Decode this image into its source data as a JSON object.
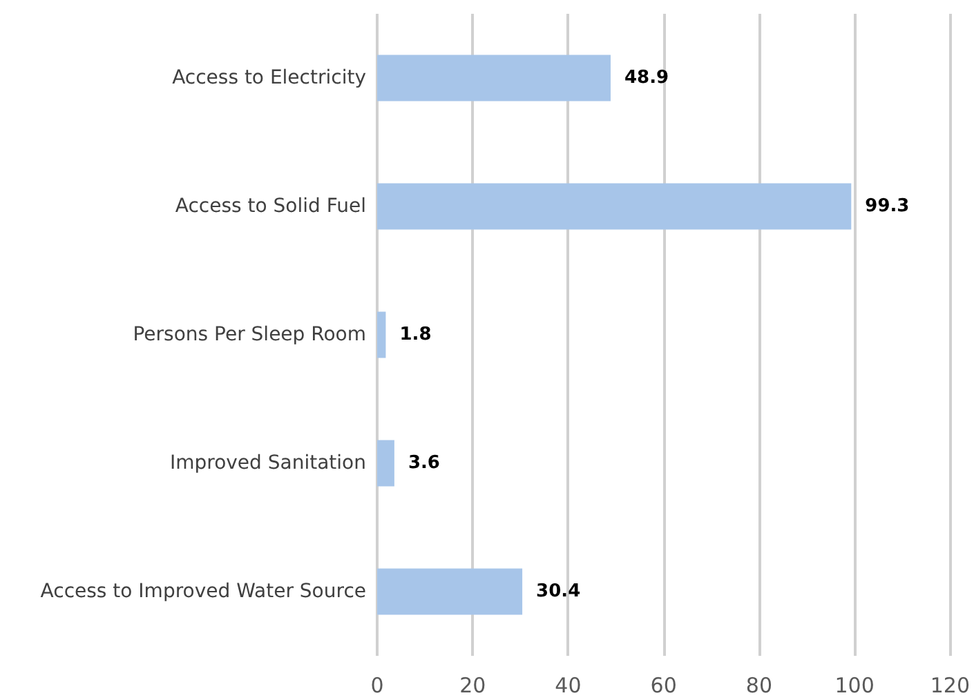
{
  "chart_data": {
    "type": "bar",
    "orientation": "horizontal",
    "categories": [
      "Access to Electricity",
      "Access to Solid Fuel",
      "Persons Per Sleep Room",
      "Improved Sanitation",
      "Access to Improved Water Source"
    ],
    "values": [
      48.9,
      99.3,
      1.8,
      3.6,
      30.4
    ],
    "color": "#a7c5e9",
    "xlim": [
      0,
      120
    ],
    "xticks": [
      0,
      20,
      40,
      60,
      80,
      100,
      120
    ],
    "grid": "x",
    "data_labels": true
  }
}
